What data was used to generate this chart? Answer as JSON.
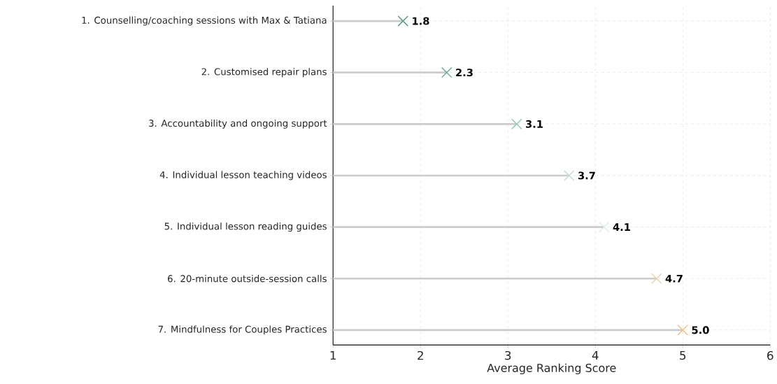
{
  "chart_data": {
    "type": "lollipop",
    "orientation": "horizontal",
    "xlabel": "Average Ranking Score",
    "categories": [
      "1. Counselling/coaching sessions with Max & Tatiana",
      "2. Customised repair plans",
      "3. Accountability and ongoing support",
      "4. Individual lesson teaching videos",
      "5. Individual lesson reading guides",
      "6. 20-minute outside-session calls",
      "7. Mindfulness for Couples Practices"
    ],
    "values": [
      1.8,
      2.3,
      3.1,
      3.7,
      4.1,
      4.7,
      5.0
    ],
    "colors": [
      "#5a9e87",
      "#74b09a",
      "#96c8b0",
      "#bfe0cc",
      "#dcefe3",
      "#f0cfae",
      "#f3c27c"
    ],
    "xlim": [
      1,
      6
    ],
    "xticks": [
      1,
      2,
      3,
      4,
      5,
      6
    ],
    "grid": true,
    "marker": "cross",
    "value_labels": [
      "1.8",
      "2.3",
      "3.1",
      "3.7",
      "4.1",
      "4.7",
      "5.0"
    ]
  }
}
